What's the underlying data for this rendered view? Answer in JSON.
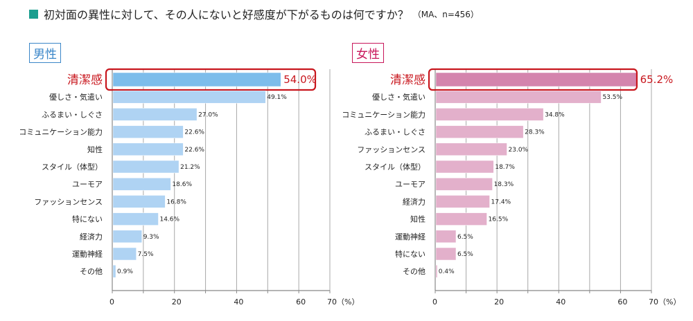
{
  "header": {
    "title": "初対面の異性に対して、その人にないと好感度が下がるものは何ですか？",
    "note": "（MA、n=456）",
    "accent_color": "#1a9e8f"
  },
  "chart_data": [
    {
      "type": "bar",
      "orientation": "horizontal",
      "title": "男性",
      "title_color": "#3a86c8",
      "categories": [
        "清潔感",
        "優しさ・気遣い",
        "ふるまい・しぐさ",
        "コミュニケーション能力",
        "知性",
        "スタイル（体型）",
        "ユーモア",
        "ファッションセンス",
        "特にない",
        "経済力",
        "運動神経",
        "その他"
      ],
      "values": [
        54.0,
        49.1,
        27.0,
        22.6,
        22.6,
        21.2,
        18.6,
        16.8,
        14.6,
        9.3,
        7.5,
        0.9
      ],
      "value_labels": [
        "54.0%",
        "49.1%",
        "27.0%",
        "22.6%",
        "22.6%",
        "21.2%",
        "18.6%",
        "16.8%",
        "14.6%",
        "9.3%",
        "7.5%",
        "0.9%"
      ],
      "highlight_index": 0,
      "bar_color": "#afd3f3",
      "highlight_color": "#7dbdeb",
      "xlim": [
        0,
        70
      ],
      "grid_step": 10,
      "tick_labels": [
        "0",
        "20",
        "40",
        "60",
        "70"
      ],
      "tick_values": [
        0,
        20,
        40,
        60,
        70
      ],
      "xunit": "（%）",
      "grid": true
    },
    {
      "type": "bar",
      "orientation": "horizontal",
      "title": "女性",
      "title_color": "#c8165a",
      "categories": [
        "清潔感",
        "優しさ・気遣い",
        "コミュニケーション能力",
        "ふるまい・しぐさ",
        "ファッションセンス",
        "スタイル（体型）",
        "ユーモア",
        "経済力",
        "知性",
        "運動神経",
        "特にない",
        "その他"
      ],
      "values": [
        65.2,
        53.5,
        34.8,
        28.3,
        23.0,
        18.7,
        18.3,
        17.4,
        16.5,
        6.5,
        6.5,
        0.4
      ],
      "value_labels": [
        "65.2%",
        "53.5%",
        "34.8%",
        "28.3%",
        "23.0%",
        "18.7%",
        "18.3%",
        "17.4%",
        "16.5%",
        "6.5%",
        "6.5%",
        "0.4%"
      ],
      "highlight_index": 0,
      "bar_color": "#e3b0cb",
      "highlight_color": "#d484ad",
      "xlim": [
        0,
        70
      ],
      "grid_step": 10,
      "tick_labels": [
        "0",
        "20",
        "40",
        "60",
        "70（%）"
      ],
      "tick_values": [
        0,
        20,
        40,
        60,
        70
      ],
      "xunit": "（%）",
      "grid": true
    }
  ],
  "highlight_box_color": "#c8161d"
}
